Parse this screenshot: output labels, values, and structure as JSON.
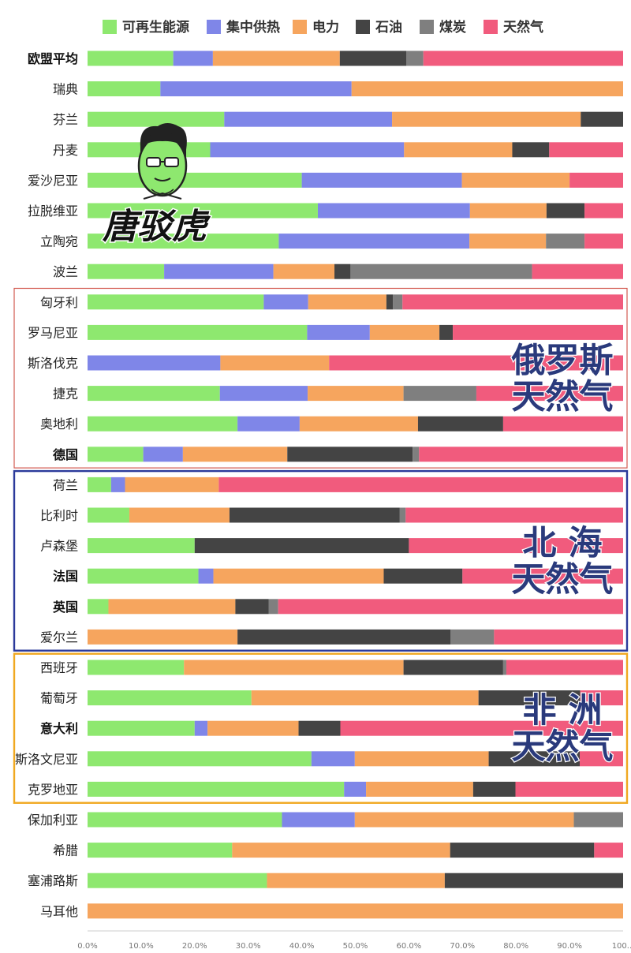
{
  "chart_data": {
    "type": "bar",
    "orientation": "horizontal",
    "stacked": true,
    "normalized_percent": true,
    "title": "",
    "xlabel": "",
    "ylabel": "",
    "xlim": [
      0,
      100
    ],
    "grid": false,
    "legend_position": "top-center",
    "x_ticks": [
      "0.0%",
      "10.0%",
      "20.0%",
      "30.0%",
      "40.0%",
      "50.0%",
      "60.0%",
      "70.0%",
      "80.0%",
      "90.0%",
      "100..."
    ],
    "categories": [
      "欧盟平均",
      "瑞典",
      "芬兰",
      "丹麦",
      "爱沙尼亚",
      "拉脱维亚",
      "立陶宛",
      "波兰",
      "匈牙利",
      "罗马尼亚",
      "斯洛伐克",
      "捷克",
      "奥地利",
      "德国",
      "荷兰",
      "比利时",
      "卢森堡",
      "法国",
      "英国",
      "爱尔兰",
      "西班牙",
      "葡萄牙",
      "意大利",
      "斯洛文尼亚",
      "克罗地亚",
      "保加利亚",
      "希腊",
      "塞浦路斯",
      "马耳他"
    ],
    "bold_categories": [
      "欧盟平均",
      "德国",
      "法国",
      "英国",
      "意大利"
    ],
    "series": [
      {
        "name": "可再生能源",
        "color": "#8ee86f",
        "values": [
          16,
          13.6,
          25.5,
          22.9,
          40,
          43,
          35.7,
          14.3,
          32.9,
          41,
          0,
          24.7,
          28,
          10.4,
          4.4,
          7.8,
          20,
          20.7,
          3.9,
          0,
          18,
          30.6,
          20,
          41.8,
          47.9,
          36.3,
          27,
          33.5,
          0
        ]
      },
      {
        "name": "集中供热",
        "color": "#7f86e8",
        "values": [
          7.4,
          35.7,
          31.3,
          36.2,
          29.9,
          28.4,
          35.6,
          20.4,
          8.3,
          11.7,
          24.8,
          16.4,
          11.6,
          7.4,
          2.6,
          0,
          0,
          2.8,
          0,
          0,
          0,
          0,
          2.4,
          8.1,
          4.1,
          13.6,
          0,
          0,
          0
        ]
      },
      {
        "name": "电力",
        "color": "#f6a55e",
        "values": [
          23.7,
          50.7,
          35.2,
          20.2,
          20.1,
          14.3,
          14.3,
          11.4,
          14.6,
          13,
          20.3,
          17.9,
          22.1,
          19.5,
          17.5,
          18.7,
          0,
          31.8,
          23.7,
          28,
          41,
          42.4,
          17,
          25,
          20,
          40.9,
          40.7,
          33.2,
          100
        ]
      },
      {
        "name": "石油",
        "color": "#444444",
        "values": [
          12.4,
          0,
          7.9,
          6.9,
          0,
          7.1,
          0,
          3,
          1.2,
          2.5,
          0,
          0,
          15.9,
          23.4,
          0,
          31.8,
          40,
          14.7,
          6.2,
          39.8,
          18.6,
          19,
          7.8,
          17,
          7.9,
          0,
          26.9,
          33.3,
          0
        ]
      },
      {
        "name": "煤炭",
        "color": "#7f7f7f",
        "values": [
          3.2,
          0,
          0,
          0,
          0,
          0,
          7.2,
          33.9,
          1.8,
          0,
          0,
          13.6,
          0,
          1.2,
          0,
          1.1,
          0,
          0,
          1.8,
          8.1,
          0.6,
          0,
          0,
          0,
          0,
          9.2,
          0,
          0,
          0
        ]
      },
      {
        "name": "天然气",
        "color": "#f15b7d",
        "values": [
          37.3,
          0,
          0,
          13.8,
          10,
          7.2,
          7.2,
          17,
          41.2,
          31.8,
          54.9,
          27.4,
          22.4,
          38.1,
          75.5,
          40.6,
          40,
          30,
          64.4,
          24.1,
          21.8,
          8,
          52.8,
          8.1,
          20.1,
          0,
          5.4,
          0,
          0
        ]
      }
    ]
  },
  "annotations": {
    "logo_text": "唐驳虎",
    "groups": [
      {
        "from": "匈牙利",
        "to": "德国",
        "color": "#d35a50",
        "label": [
          "俄罗斯",
          "天然气"
        ]
      },
      {
        "from": "荷兰",
        "to": "爱尔兰",
        "color": "#2b3a9b",
        "label": [
          "北  海",
          "天然气"
        ]
      },
      {
        "from": "西班牙",
        "to": "克罗地亚",
        "color": "#f0a820",
        "label": [
          "非  洲",
          "天然气"
        ]
      }
    ]
  }
}
